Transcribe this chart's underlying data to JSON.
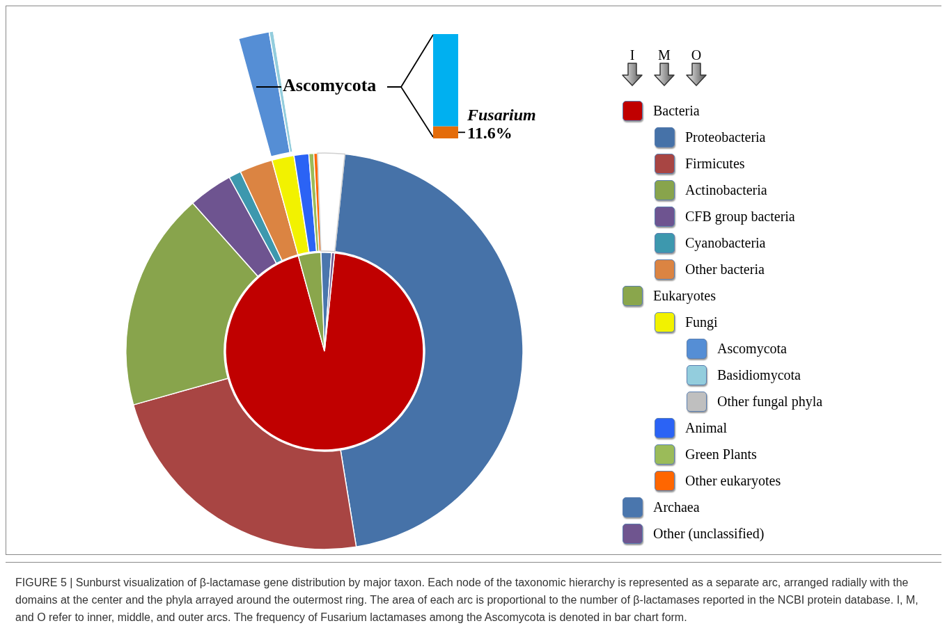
{
  "chart_data": [
    {
      "type": "pie",
      "title": "I",
      "legend": "right",
      "categories": [
        "Bacteria",
        "Eukaryotes",
        "Archaea",
        "Other (unclassified)"
      ],
      "values": [
        94.1,
        3.7,
        1.7,
        0.5
      ],
      "colors": [
        "#c00000",
        "#8aa64c",
        "#4a76ad",
        "#6f558f"
      ],
      "annotations": [
        "FIGURE 5 | Sunburst visualization of β-lactamase gene distribution by major taxon. Each node of the taxonomic hierarchy is represented as a separate arc, arranged radially with the domains at the center and the phyla arrayed around the outermost ring. The area of each arc is proportional to the number of β-lactamases reported in the NCBI protein database. I, M, and O refer to inner, middle, and outer arcs. The frequency of Fusarium lactamases among the Ascomycota is denoted in bar chart form."
      ]
    },
    {
      "type": "donut",
      "title": "M",
      "legend": "right",
      "categories": [
        "Proteobacteria",
        "Firmicutes",
        "Actinobacteria",
        "CFB group bacteria",
        "Cyanobacteria",
        "Other bacteria",
        "Fungi",
        "Animal",
        "Green Plants",
        "Other eukaryotes",
        null
      ],
      "values": [
        45.8,
        23.2,
        17.8,
        3.6,
        1.0,
        2.7,
        1.8,
        1.2,
        0.4,
        0.3,
        2.2
      ],
      "colors": [
        "#4672a8",
        "#a84543",
        "#88a44c",
        "#6e5490",
        "#3d98ae",
        "#db8442",
        "#f2f200",
        "#2b63f5",
        "#9bbb59",
        "#ff6600",
        "#ffffff"
      ]
    },
    {
      "type": "pie",
      "title": "O",
      "legend": "right",
      "categories": [
        "Ascomycota",
        "Basidiomycota",
        "Other fungal phyla"
      ],
      "values": [
        85,
        12,
        3
      ],
      "colors": [
        "#558ed5",
        "#93cddd",
        "#bfbfbf"
      ],
      "annotations": [
        "Ascomycota"
      ]
    },
    {
      "type": "bar",
      "stacked": true,
      "categories": [
        null
      ],
      "tick_labels": false,
      "series": [
        {
          "name": "Fusarium",
          "color": "#e46c0a",
          "values": [
            11.6
          ],
          "value_labels": [
            "11.6%"
          ]
        },
        {
          "color": "#00b0f0",
          "values": [
            88.4
          ]
        }
      ]
    }
  ]
}
